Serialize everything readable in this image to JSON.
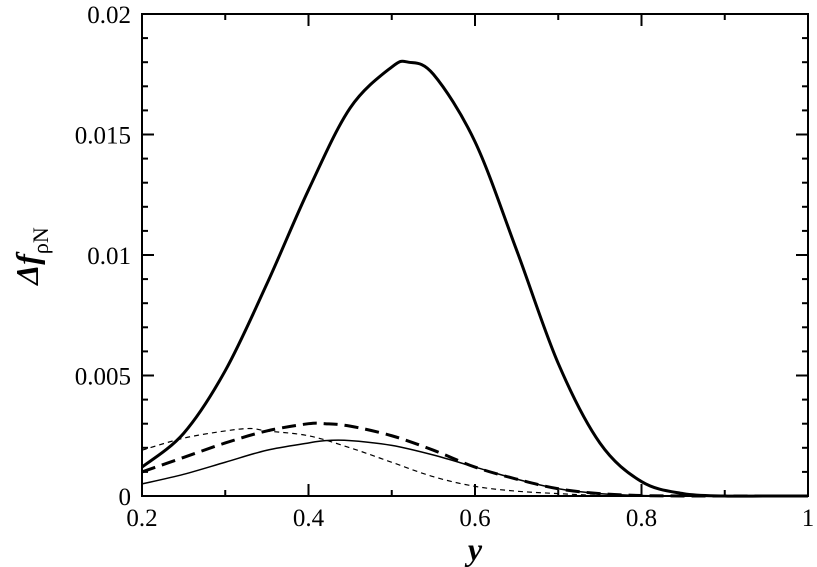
{
  "chart_data": {
    "type": "line",
    "title": "",
    "xlabel": "y",
    "ylabel": {
      "main": "Δf",
      "subscript": "ρN"
    },
    "xlim": [
      0.2,
      1.0
    ],
    "ylim": [
      0,
      0.02
    ],
    "xticks": [
      {
        "value": 0.2,
        "label": "0.2"
      },
      {
        "value": 0.4,
        "label": "0.4"
      },
      {
        "value": 0.6,
        "label": "0.6"
      },
      {
        "value": 0.8,
        "label": "0.8"
      },
      {
        "value": 1.0,
        "label": "1"
      }
    ],
    "yticks": [
      {
        "value": 0,
        "label": "0"
      },
      {
        "value": 0.005,
        "label": "0.005"
      },
      {
        "value": 0.01,
        "label": "0.01"
      },
      {
        "value": 0.015,
        "label": "0.015"
      },
      {
        "value": 0.02,
        "label": "0.02"
      }
    ],
    "grid": false,
    "series": [
      {
        "style": "thick-solid",
        "x": [
          0.2,
          0.25,
          0.3,
          0.35,
          0.4,
          0.45,
          0.5,
          0.52,
          0.55,
          0.6,
          0.65,
          0.7,
          0.75,
          0.8,
          0.85,
          0.9,
          0.95,
          1.0
        ],
        "y": [
          0.0012,
          0.0026,
          0.0052,
          0.0088,
          0.0127,
          0.0161,
          0.0178,
          0.018,
          0.0175,
          0.0147,
          0.0102,
          0.0055,
          0.0022,
          0.0006,
          0.0001,
          0.0,
          0.0,
          0.0
        ]
      },
      {
        "style": "thick-dashed",
        "x": [
          0.2,
          0.25,
          0.3,
          0.35,
          0.4,
          0.42,
          0.45,
          0.5,
          0.55,
          0.6,
          0.65,
          0.7,
          0.75,
          0.8,
          0.85,
          0.9,
          0.95,
          1.0
        ],
        "y": [
          0.001,
          0.0016,
          0.0022,
          0.0027,
          0.003,
          0.003,
          0.0029,
          0.0025,
          0.0019,
          0.0012,
          0.0007,
          0.0003,
          0.0001,
          2e-05,
          0.0,
          0.0,
          0.0,
          0.0
        ]
      },
      {
        "style": "thin-solid",
        "x": [
          0.2,
          0.25,
          0.3,
          0.35,
          0.4,
          0.42,
          0.45,
          0.5,
          0.55,
          0.6,
          0.65,
          0.7,
          0.75,
          0.8,
          0.85,
          0.9,
          0.95,
          1.0
        ],
        "y": [
          0.0005,
          0.0009,
          0.0014,
          0.0019,
          0.0022,
          0.0023,
          0.0023,
          0.0021,
          0.0017,
          0.0012,
          0.0007,
          0.0003,
          0.0001,
          2e-05,
          0.0,
          0.0,
          0.0,
          0.0
        ]
      },
      {
        "style": "thin-dashed",
        "x": [
          0.2,
          0.25,
          0.3,
          0.33,
          0.35,
          0.4,
          0.45,
          0.5,
          0.55,
          0.6,
          0.65,
          0.7,
          0.75,
          0.8,
          0.85,
          0.9,
          0.95,
          1.0
        ],
        "y": [
          0.0019,
          0.0024,
          0.0027,
          0.0028,
          0.0027,
          0.0025,
          0.002,
          0.0014,
          0.0008,
          0.0004,
          0.0002,
          0.0001,
          2e-05,
          0.0,
          0.0,
          0.0,
          0.0,
          0.0
        ]
      }
    ]
  }
}
